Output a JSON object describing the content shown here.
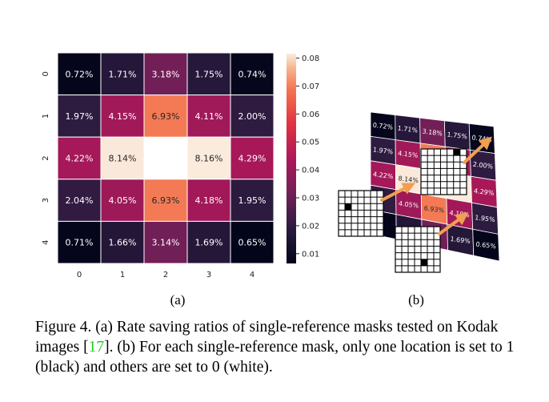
{
  "chart_data": [
    {
      "type": "heatmap",
      "panel": "(a)",
      "rows": [
        "0",
        "1",
        "2",
        "3",
        "4"
      ],
      "cols": [
        "0",
        "1",
        "2",
        "3",
        "4"
      ],
      "values": [
        [
          0.0072,
          0.0171,
          0.0318,
          0.0175,
          0.0074
        ],
        [
          0.0197,
          0.0415,
          0.0693,
          0.0411,
          0.02
        ],
        [
          0.0422,
          0.0814,
          null,
          0.0816,
          0.0429
        ],
        [
          0.0204,
          0.0405,
          0.0693,
          0.0418,
          0.0195
        ],
        [
          0.0071,
          0.0166,
          0.0314,
          0.0169,
          0.0065
        ]
      ],
      "labels": [
        [
          "0.72%",
          "1.71%",
          "3.18%",
          "1.75%",
          "0.74%"
        ],
        [
          "1.97%",
          "4.15%",
          "6.93%",
          "4.11%",
          "2.00%"
        ],
        [
          "4.22%",
          "8.14%",
          "",
          "8.16%",
          "4.29%"
        ],
        [
          "2.04%",
          "4.05%",
          "6.93%",
          "4.18%",
          "1.95%"
        ],
        [
          "0.71%",
          "1.66%",
          "3.14%",
          "1.69%",
          "0.65%"
        ]
      ],
      "colorbar": {
        "range": [
          0.0065,
          0.0816
        ],
        "ticks": [
          "0.01",
          "0.02",
          "0.03",
          "0.04",
          "0.05",
          "0.06",
          "0.07",
          "0.08"
        ],
        "tick_values": [
          0.01,
          0.02,
          0.03,
          0.04,
          0.05,
          0.06,
          0.07,
          0.08
        ]
      },
      "colormap": "rocket"
    }
  ],
  "panel_b": {
    "label": "(b)",
    "labels": [
      [
        "0.72%",
        "1.71%",
        "3.18%",
        "1.75%",
        "0.74%"
      ],
      [
        "1.97%",
        "4.15%",
        "",
        "",
        "2.00%"
      ],
      [
        "4.22%",
        "8.14%",
        "",
        "",
        "4.29%"
      ],
      [
        "",
        "4.05%",
        "6.93%",
        "4.18%",
        "1.95%"
      ],
      [
        "",
        "",
        "",
        "1.69%",
        "0.65%"
      ]
    ],
    "masks": [
      {
        "name": "left",
        "black_cell": [
          2,
          1
        ]
      },
      {
        "name": "top",
        "black_cell": [
          0,
          5
        ]
      },
      {
        "name": "bottom",
        "black_cell": [
          5,
          4
        ]
      }
    ],
    "arrow_color": "#f0a050"
  },
  "caption": {
    "part1": "Figure 4. (a) Rate saving ratios of single-reference masks tested on Kodak images [",
    "ref": "17",
    "part2": "].  (b) For each single-reference mask, only one location is set to 1 (black) and others are set to 0 (white)."
  }
}
